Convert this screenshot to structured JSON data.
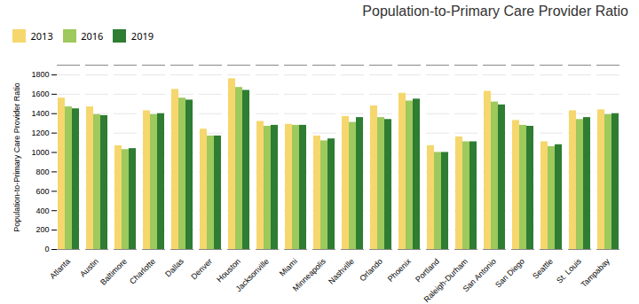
{
  "chart_data": {
    "type": "bar",
    "title": "Population-to-Primary Care Provider Ratio",
    "ylabel": "Population-to-Primary Care Provider Ratio",
    "categories": [
      "Atlanta",
      "Austin",
      "Baltimore",
      "Charlotte",
      "Dallas",
      "Denver",
      "Houston",
      "Jacksonville",
      "Miami",
      "Minneapolis",
      "Nashville",
      "Orlando",
      "Phoenix",
      "Portland",
      "Raleigh-Durham",
      "San Antonio",
      "San Diego",
      "Seattle",
      "St. Louis",
      "Tampabay"
    ],
    "series": [
      {
        "name": "2013",
        "color": "#F5D76E",
        "values": [
          1560,
          1470,
          1070,
          1430,
          1650,
          1240,
          1760,
          1320,
          1290,
          1170,
          1370,
          1480,
          1610,
          1070,
          1160,
          1630,
          1330,
          1110,
          1430,
          1440
        ]
      },
      {
        "name": "2016",
        "color": "#9DC95D",
        "values": [
          1470,
          1390,
          1030,
          1390,
          1560,
          1170,
          1670,
          1270,
          1280,
          1120,
          1310,
          1360,
          1530,
          1000,
          1110,
          1520,
          1280,
          1060,
          1340,
          1390
        ]
      },
      {
        "name": "2019",
        "color": "#2E7D32",
        "values": [
          1450,
          1380,
          1040,
          1400,
          1540,
          1170,
          1640,
          1280,
          1280,
          1140,
          1360,
          1340,
          1550,
          1000,
          1110,
          1490,
          1270,
          1080,
          1360,
          1400
        ]
      }
    ],
    "ylim": [
      0,
      1900
    ],
    "yticks": [
      0,
      200,
      400,
      600,
      800,
      1000,
      1200,
      1400,
      1600,
      1800
    ],
    "grid": true,
    "legend": "top-left"
  }
}
